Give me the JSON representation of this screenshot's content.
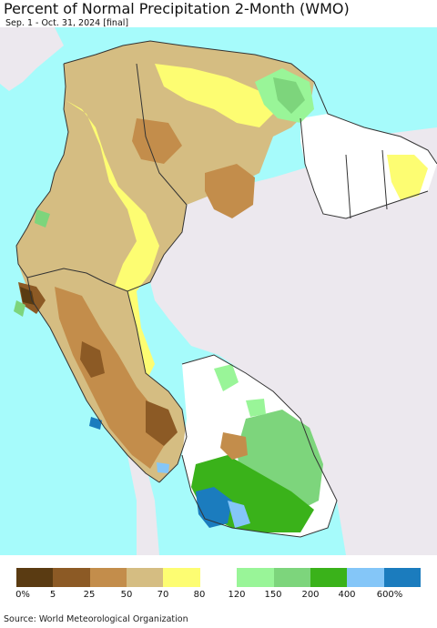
{
  "title": "Percent of Normal Precipitation 2-Month (WMO)",
  "subtitle": "Sep. 1 - Oct. 31, 2024 [final]",
  "source": "Source: World Meteorological Organization",
  "colors": {
    "ocean": "#a6fbfb",
    "land_outside": "#ece8ee",
    "border": "#333333"
  },
  "legend": {
    "swatches": [
      "#5a3b12",
      "#8c5a25",
      "#c38d4b",
      "#d5bd82",
      "#fdfd72",
      "#ffffff",
      "#99f598",
      "#7dd57c",
      "#3ab21a",
      "#84c6f8",
      "#1b7cbe"
    ],
    "labels": [
      "0%",
      "5",
      "25",
      "50",
      "70",
      "80",
      "120",
      "150",
      "200",
      "400",
      "600%"
    ]
  }
}
